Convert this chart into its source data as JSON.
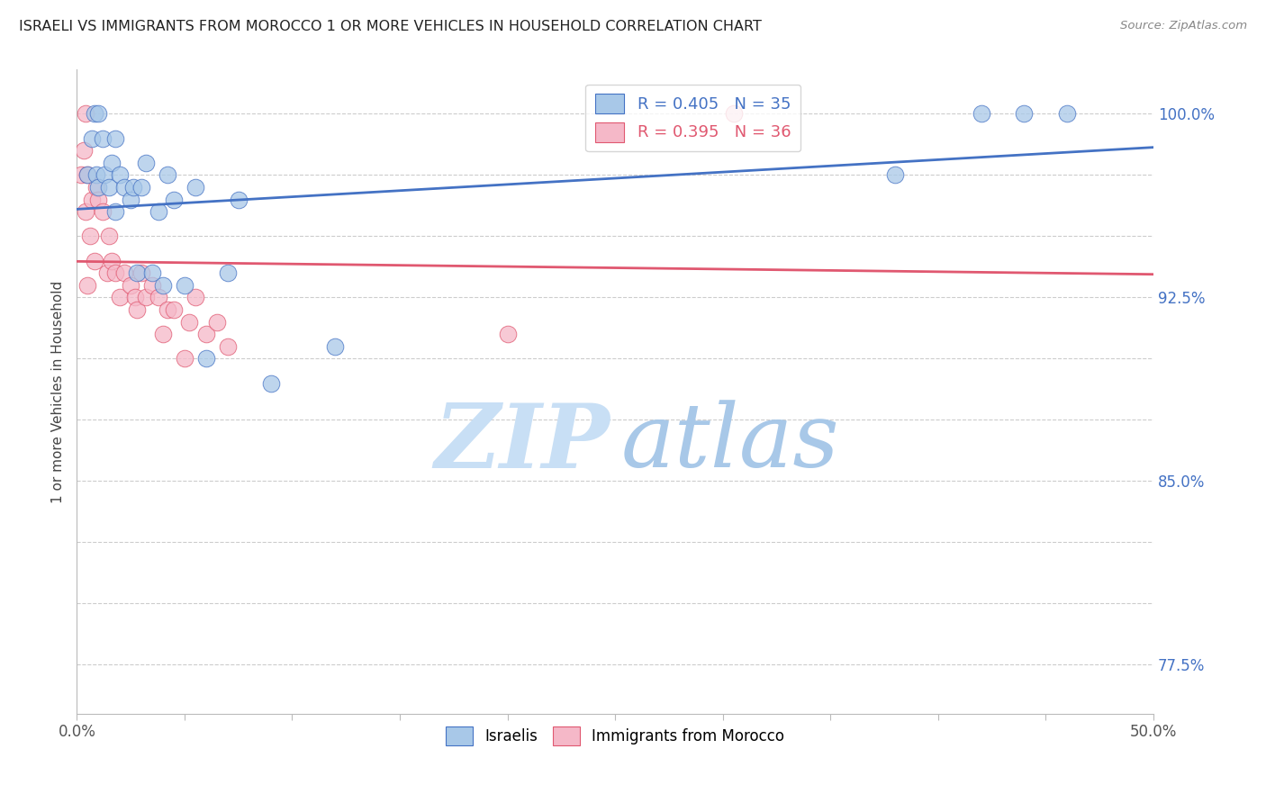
{
  "title": "ISRAELI VS IMMIGRANTS FROM MOROCCO 1 OR MORE VEHICLES IN HOUSEHOLD CORRELATION CHART",
  "source": "Source: ZipAtlas.com",
  "ylabel": "1 or more Vehicles in Household",
  "xlim": [
    0.0,
    0.5
  ],
  "ylim": [
    0.755,
    1.018
  ],
  "xtick_positions": [
    0.0,
    0.05,
    0.1,
    0.15,
    0.2,
    0.25,
    0.3,
    0.35,
    0.4,
    0.45,
    0.5
  ],
  "xticklabels": [
    "0.0%",
    "",
    "",
    "",
    "",
    "",
    "",
    "",
    "",
    "",
    "50.0%"
  ],
  "ytick_positions": [
    0.775,
    0.8,
    0.825,
    0.85,
    0.875,
    0.9,
    0.925,
    0.95,
    0.975,
    1.0
  ],
  "yticklabels": [
    "77.5%",
    "",
    "",
    "85.0%",
    "",
    "",
    "92.5%",
    "",
    "",
    "100.0%"
  ],
  "R_israeli": 0.405,
  "N_israeli": 35,
  "R_morocco": 0.395,
  "N_morocco": 36,
  "color_israeli": "#a8c8e8",
  "color_morocco": "#f5b8c8",
  "line_color_israeli": "#4472c4",
  "line_color_morocco": "#e05870",
  "watermark_zip": "ZIP",
  "watermark_atlas": "atlas",
  "watermark_zip_color": "#c8dff5",
  "watermark_atlas_color": "#a8c8e8",
  "israeli_x": [
    0.005,
    0.007,
    0.008,
    0.009,
    0.01,
    0.01,
    0.012,
    0.013,
    0.015,
    0.016,
    0.018,
    0.018,
    0.02,
    0.022,
    0.025,
    0.026,
    0.028,
    0.03,
    0.032,
    0.035,
    0.038,
    0.04,
    0.042,
    0.045,
    0.05,
    0.055,
    0.06,
    0.07,
    0.075,
    0.09,
    0.12,
    0.38,
    0.42,
    0.44,
    0.46
  ],
  "israeli_y": [
    0.975,
    0.99,
    1.0,
    0.975,
    0.97,
    1.0,
    0.99,
    0.975,
    0.97,
    0.98,
    0.96,
    0.99,
    0.975,
    0.97,
    0.965,
    0.97,
    0.935,
    0.97,
    0.98,
    0.935,
    0.96,
    0.93,
    0.975,
    0.965,
    0.93,
    0.97,
    0.9,
    0.935,
    0.965,
    0.89,
    0.905,
    0.975,
    1.0,
    1.0,
    1.0
  ],
  "morocco_x": [
    0.002,
    0.003,
    0.004,
    0.004,
    0.005,
    0.005,
    0.006,
    0.007,
    0.008,
    0.009,
    0.01,
    0.012,
    0.014,
    0.015,
    0.016,
    0.018,
    0.02,
    0.022,
    0.025,
    0.027,
    0.028,
    0.03,
    0.032,
    0.035,
    0.038,
    0.04,
    0.042,
    0.045,
    0.05,
    0.052,
    0.055,
    0.06,
    0.065,
    0.07,
    0.2,
    0.305
  ],
  "morocco_y": [
    0.975,
    0.985,
    1.0,
    0.96,
    0.975,
    0.93,
    0.95,
    0.965,
    0.94,
    0.97,
    0.965,
    0.96,
    0.935,
    0.95,
    0.94,
    0.935,
    0.925,
    0.935,
    0.93,
    0.925,
    0.92,
    0.935,
    0.925,
    0.93,
    0.925,
    0.91,
    0.92,
    0.92,
    0.9,
    0.915,
    0.925,
    0.91,
    0.915,
    0.905,
    0.91,
    1.0
  ]
}
